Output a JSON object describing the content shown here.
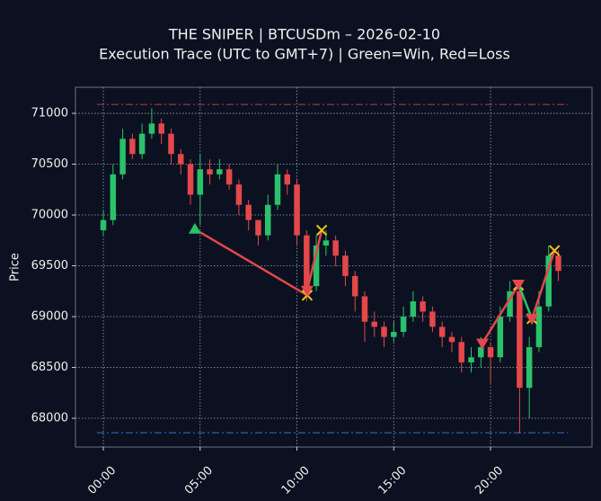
{
  "chart_data": {
    "type": "candlestick",
    "title": "THE SNIPER | BTCUSDm – 2026-02-10",
    "subtitle": "Execution Trace (UTC to GMT+7) | Green=Win, Red=Loss",
    "ylabel": "Price",
    "xlim": [
      -1.44,
      25.24
    ],
    "xticks": [
      {
        "value": 0,
        "label": "00:00"
      },
      {
        "value": 5,
        "label": "05:00"
      },
      {
        "value": 10,
        "label": "10:00"
      },
      {
        "value": 15,
        "label": "15:00"
      },
      {
        "value": 20,
        "label": "20:00"
      }
    ],
    "ylim": [
      67717,
      71257
    ],
    "yticks": [
      68000,
      68500,
      69000,
      69500,
      70000,
      70500,
      71000
    ],
    "grid": true,
    "up_color": "#2bc16b",
    "down_color": "#e5474b",
    "x": [
      0,
      0.5,
      1,
      1.5,
      2,
      2.5,
      3,
      3.5,
      4,
      4.5,
      5,
      5.5,
      6,
      6.5,
      7,
      7.5,
      8,
      8.5,
      9,
      9.5,
      10,
      10.5,
      11,
      11.5,
      12,
      12.5,
      13,
      13.5,
      14,
      14.5,
      15,
      15.5,
      16,
      16.5,
      17,
      17.5,
      18,
      18.5,
      19,
      19.5,
      20,
      20.5,
      21,
      21.5,
      22,
      22.5,
      23,
      23.5
    ],
    "open": [
      69850,
      69950,
      70400,
      70750,
      70600,
      70800,
      70900,
      70800,
      70600,
      70500,
      70200,
      70450,
      70400,
      70450,
      70300,
      70100,
      69950,
      69800,
      70100,
      70400,
      70300,
      69800,
      69300,
      69700,
      69750,
      69600,
      69400,
      69200,
      68950,
      68900,
      68800,
      68850,
      69000,
      69150,
      69050,
      68900,
      68800,
      68750,
      68550,
      68600,
      68700,
      68600,
      69000,
      69250,
      68300,
      68700,
      69100,
      69600
    ],
    "high": [
      70050,
      70500,
      70850,
      70800,
      70900,
      71050,
      70950,
      70850,
      70650,
      70550,
      70600,
      70550,
      70550,
      70500,
      70350,
      70150,
      69950,
      70200,
      70500,
      70450,
      70350,
      69850,
      69800,
      69850,
      69800,
      69650,
      69450,
      69250,
      69050,
      68950,
      68950,
      69100,
      69250,
      69200,
      69100,
      68950,
      68850,
      68800,
      68700,
      68800,
      68750,
      69100,
      69350,
      69300,
      68800,
      69250,
      69700,
      69650
    ],
    "low": [
      69800,
      69900,
      70350,
      70550,
      70550,
      70750,
      70700,
      70500,
      70400,
      70100,
      69900,
      70300,
      70350,
      70250,
      70000,
      69850,
      69700,
      69750,
      70050,
      70200,
      69700,
      69150,
      69250,
      69600,
      69500,
      69300,
      69050,
      68750,
      68800,
      68700,
      68750,
      68800,
      68950,
      68950,
      68850,
      68700,
      68650,
      68450,
      68450,
      68500,
      68350,
      68550,
      68950,
      67850,
      68000,
      68650,
      69050,
      69350
    ],
    "close": [
      69950,
      70400,
      70750,
      70600,
      70800,
      70900,
      70800,
      70600,
      70500,
      70200,
      70450,
      70400,
      70450,
      70300,
      70100,
      69950,
      69800,
      70100,
      70400,
      70300,
      69800,
      69300,
      69700,
      69750,
      69600,
      69400,
      69200,
      68950,
      68900,
      68800,
      68850,
      69000,
      69150,
      69050,
      68900,
      68800,
      68750,
      68550,
      68600,
      68700,
      68600,
      69000,
      69250,
      68300,
      68700,
      69100,
      69600,
      69450
    ],
    "hlines": [
      {
        "value": 71088,
        "color": "#c0394b"
      },
      {
        "value": 67858,
        "color": "#3b6fd6"
      }
    ],
    "exit_color": "#f2c21b",
    "trades": [
      {
        "side": "buy",
        "entry_time": 4.73,
        "entry_price": 69860,
        "exit_time": 10.53,
        "exit_price": 69210,
        "color": "#e5474b"
      },
      {
        "side": "sell",
        "entry_time": 10.53,
        "entry_price": 69260,
        "exit_time": 11.28,
        "exit_price": 69850,
        "color": "#e5474b"
      },
      {
        "side": "sell",
        "entry_time": 19.58,
        "entry_price": 68740,
        "exit_time": 21.44,
        "exit_price": 69310,
        "color": "#e5474b"
      },
      {
        "side": "sell",
        "entry_time": 21.44,
        "entry_price": 69320,
        "exit_time": 22.14,
        "exit_price": 68980,
        "color": "#2bc16b"
      },
      {
        "side": "sell",
        "entry_time": 22.14,
        "entry_price": 68980,
        "exit_time": 23.3,
        "exit_price": 69650,
        "color": "#e5474b"
      }
    ]
  }
}
